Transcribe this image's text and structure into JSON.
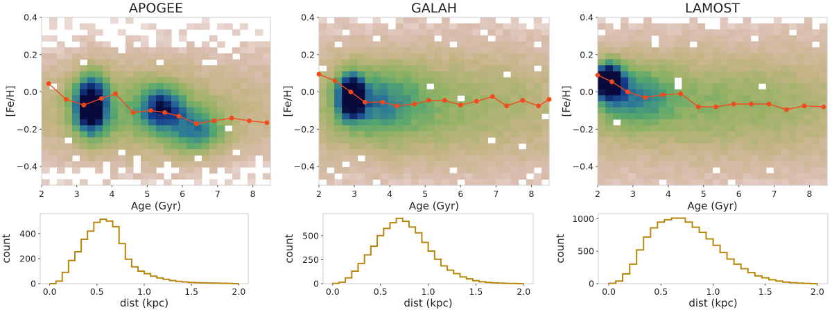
{
  "colors": {
    "trend": "#f24a1c",
    "hist": "#b8860b",
    "frame": "#cccccc",
    "tick": "#555555",
    "heat_low": "#efe2dc",
    "heat_mid": "#c9b88a",
    "heat_high": "#0a0a4a"
  },
  "chart_data": [
    {
      "type": "heatmap",
      "title": "APOGEE",
      "xlabel": "Age (Gyr)",
      "ylabel": "[Fe/H]",
      "xlim": [
        2.0,
        8.5
      ],
      "ylim": [
        -0.5,
        0.4
      ],
      "xticks": [
        2,
        3,
        4,
        5,
        6,
        7,
        8
      ],
      "yticks": [
        -0.4,
        -0.2,
        0.0,
        0.2,
        0.4
      ],
      "xtick_labels": [
        "2",
        "3",
        "4",
        "5",
        "6",
        "7",
        "8"
      ],
      "ytick_labels": [
        "−0.4",
        "−0.2",
        "0.0",
        "0.2",
        "0.4"
      ],
      "density_peaks": [
        {
          "x": 3.4,
          "y": -0.07,
          "sx": 0.35,
          "sy": 0.12,
          "w": 1.0
        },
        {
          "x": 5.4,
          "y": -0.08,
          "sx": 0.45,
          "sy": 0.08,
          "w": 0.6
        },
        {
          "x": 6.4,
          "y": -0.22,
          "sx": 0.6,
          "sy": 0.09,
          "w": 0.5
        },
        {
          "x": 4.8,
          "y": -0.12,
          "sx": 1.6,
          "sy": 0.18,
          "w": 0.3
        }
      ],
      "density_spread": 0.22,
      "trend": {
        "x": [
          2.2,
          2.7,
          3.2,
          3.7,
          4.1,
          4.6,
          5.1,
          5.5,
          5.9,
          6.4,
          6.9,
          7.4,
          7.9,
          8.4
        ],
        "y": [
          0.045,
          -0.04,
          -0.07,
          -0.035,
          -0.01,
          -0.11,
          -0.1,
          -0.11,
          -0.13,
          -0.17,
          -0.155,
          -0.14,
          -0.155,
          -0.165
        ]
      }
    },
    {
      "type": "heatmap",
      "title": "GALAH",
      "xlabel": "Age (Gyr)",
      "ylabel": "[Fe/H]",
      "xlim": [
        2.0,
        8.5
      ],
      "ylim": [
        -0.5,
        0.4
      ],
      "xticks": [
        2,
        3,
        4,
        5,
        6,
        7,
        8
      ],
      "yticks": [
        -0.4,
        -0.2,
        0.0,
        0.2,
        0.4
      ],
      "xtick_labels": [
        "2",
        "3",
        "4",
        "5",
        "6",
        "7",
        "8"
      ],
      "ytick_labels": [
        "−0.4",
        "−0.2",
        "0.0",
        "0.2",
        "0.4"
      ],
      "density_peaks": [
        {
          "x": 2.9,
          "y": -0.02,
          "sx": 0.25,
          "sy": 0.08,
          "w": 1.0
        },
        {
          "x": 3.6,
          "y": -0.06,
          "sx": 0.9,
          "sy": 0.14,
          "w": 0.45
        },
        {
          "x": 5.5,
          "y": -0.07,
          "sx": 2.2,
          "sy": 0.2,
          "w": 0.25
        }
      ],
      "density_spread": 0.3,
      "trend": {
        "x": [
          2.0,
          2.45,
          2.9,
          3.3,
          3.8,
          4.2,
          4.7,
          5.1,
          5.55,
          6.0,
          6.45,
          6.9,
          7.3,
          7.75,
          8.2,
          8.5
        ],
        "y": [
          0.095,
          0.06,
          0.0,
          -0.055,
          -0.055,
          -0.075,
          -0.065,
          -0.045,
          -0.045,
          -0.07,
          -0.05,
          -0.025,
          -0.075,
          -0.045,
          -0.075,
          -0.04
        ]
      }
    },
    {
      "type": "heatmap",
      "title": "LAMOST",
      "xlabel": "Age (Gyr)",
      "ylabel": "[Fe/H]",
      "xlim": [
        2.0,
        8.5
      ],
      "ylim": [
        -0.5,
        0.4
      ],
      "xticks": [
        2,
        3,
        4,
        5,
        6,
        7,
        8
      ],
      "yticks": [
        -0.4,
        -0.2,
        0.0,
        0.2,
        0.4
      ],
      "xtick_labels": [
        "2",
        "3",
        "4",
        "5",
        "6",
        "7",
        "8"
      ],
      "ytick_labels": [
        "−0.4",
        "−0.2",
        "0.0",
        "0.2",
        "0.4"
      ],
      "density_peaks": [
        {
          "x": 2.3,
          "y": 0.06,
          "sx": 0.3,
          "sy": 0.07,
          "w": 1.0
        },
        {
          "x": 3.0,
          "y": -0.02,
          "sx": 0.8,
          "sy": 0.12,
          "w": 0.45
        },
        {
          "x": 5.5,
          "y": -0.06,
          "sx": 2.5,
          "sy": 0.18,
          "w": 0.28
        }
      ],
      "density_spread": 0.32,
      "trend": {
        "x": [
          2.0,
          2.4,
          2.85,
          3.35,
          3.85,
          4.35,
          4.85,
          5.35,
          5.85,
          6.35,
          6.85,
          7.35,
          7.85,
          8.4
        ],
        "y": [
          0.09,
          0.055,
          0.0,
          -0.03,
          -0.015,
          -0.01,
          -0.08,
          -0.08,
          -0.065,
          -0.065,
          -0.065,
          -0.095,
          -0.075,
          -0.08
        ]
      }
    },
    {
      "type": "bar",
      "style": "step-histogram",
      "xlabel": "dist (kpc)",
      "ylabel": "count",
      "xlim": [
        -0.1,
        2.1
      ],
      "ylim": [
        0,
        560
      ],
      "xticks": [
        0.0,
        0.5,
        1.0,
        1.5,
        2.0
      ],
      "yticks": [
        0,
        200,
        400
      ],
      "xtick_labels": [
        "0.0",
        "0.5",
        "1.0",
        "1.5",
        "2.0"
      ],
      "ytick_labels": [
        "0",
        "200",
        "400"
      ],
      "bin_start": 0.0,
      "bin_width": 0.0667,
      "values": [
        0,
        20,
        90,
        185,
        255,
        355,
        420,
        490,
        515,
        500,
        455,
        320,
        195,
        135,
        100,
        80,
        60,
        45,
        35,
        25,
        18,
        14,
        10,
        8,
        6,
        5,
        4,
        3,
        2,
        0
      ]
    },
    {
      "type": "bar",
      "style": "step-histogram",
      "xlabel": "dist (kpc)",
      "ylabel": "count",
      "xlim": [
        -0.1,
        2.1
      ],
      "ylim": [
        0,
        730
      ],
      "xticks": [
        0.0,
        0.5,
        1.0,
        1.5,
        2.0
      ],
      "yticks": [
        0,
        250,
        500
      ],
      "xtick_labels": [
        "0.0",
        "0.5",
        "1.0",
        "1.5",
        "2.0"
      ],
      "ytick_labels": [
        "0",
        "250",
        "500"
      ],
      "bin_start": 0.0,
      "bin_width": 0.0667,
      "values": [
        3,
        15,
        60,
        130,
        210,
        300,
        390,
        500,
        575,
        635,
        680,
        650,
        590,
        530,
        430,
        340,
        255,
        185,
        140,
        105,
        70,
        50,
        30,
        20,
        12,
        8,
        5,
        3,
        2,
        0
      ]
    },
    {
      "type": "bar",
      "style": "step-histogram",
      "xlabel": "dist (kpc)",
      "ylabel": "count",
      "xlim": [
        -0.1,
        2.1
      ],
      "ylim": [
        0,
        1080
      ],
      "xticks": [
        0.0,
        0.5,
        1.0,
        1.5,
        2.0
      ],
      "yticks": [
        0,
        500,
        1000
      ],
      "xtick_labels": [
        "0.0",
        "0.5",
        "1.0",
        "1.5",
        "2.0"
      ],
      "ytick_labels": [
        "0",
        "500",
        "1000"
      ],
      "bin_start": 0.0,
      "bin_width": 0.0667,
      "values": [
        5,
        40,
        150,
        300,
        520,
        720,
        860,
        950,
        985,
        1010,
        1010,
        950,
        870,
        790,
        690,
        590,
        480,
        380,
        300,
        230,
        170,
        120,
        90,
        60,
        40,
        25,
        15,
        8,
        4,
        0
      ]
    }
  ]
}
